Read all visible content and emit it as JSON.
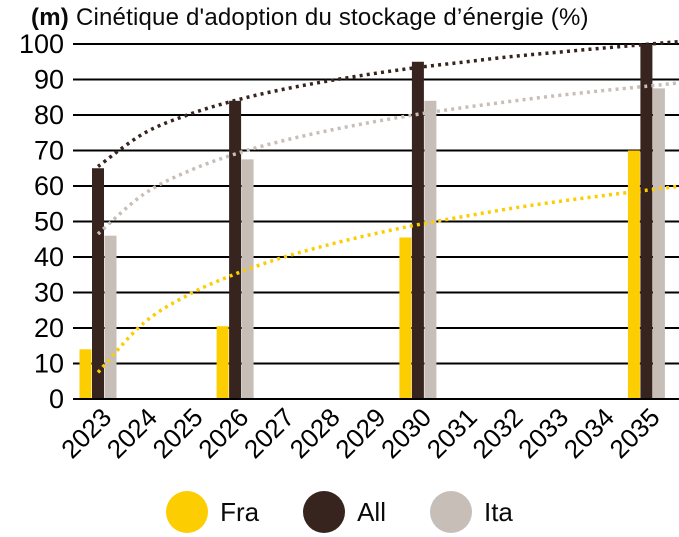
{
  "title": {
    "prefix": "(m)",
    "text": "Cinétique d'adoption du stockage d’énergie (%)"
  },
  "chart_data": {
    "type": "bar",
    "title": "Cinétique d'adoption du stockage d'énergie (%)",
    "xlabel": "",
    "ylabel": "",
    "ylim": [
      0,
      100
    ],
    "y_ticks": [
      0,
      10,
      20,
      30,
      40,
      50,
      60,
      70,
      80,
      90,
      100
    ],
    "grid": true,
    "legend_position": "bottom",
    "x_labels": [
      "2023",
      "2024",
      "2025",
      "2026",
      "2027",
      "2028",
      "2029",
      "2030",
      "2031",
      "2032",
      "2033",
      "2034",
      "2035"
    ],
    "bar_years": [
      "2023",
      "2026",
      "2030",
      "2035"
    ],
    "series": [
      {
        "name": "Fra",
        "color": "#FCCD00",
        "bars": [
          14,
          20.5,
          45.5,
          70
        ],
        "trend": [
          7.5,
          21.4,
          29.5,
          35.2,
          39.7,
          43.3,
          46.4,
          49.1,
          51.4,
          53.6,
          55.5,
          57.2,
          58.8
        ]
      },
      {
        "name": "All",
        "color": "#37241F",
        "bars": [
          65,
          84,
          95,
          100
        ],
        "trend": [
          65.5,
          74.8,
          80.2,
          84.1,
          87.1,
          89.5,
          91.6,
          93.4,
          94.9,
          96.4,
          97.6,
          98.8,
          99.9
        ]
      },
      {
        "name": "Ita",
        "color": "#C7BEB8",
        "bars": [
          46,
          67.5,
          84,
          87.5
        ],
        "trend": [
          46.5,
          57.7,
          64.3,
          69.0,
          72.6,
          75.5,
          78.0,
          80.2,
          82.1,
          83.8,
          85.4,
          86.8,
          88.1
        ]
      }
    ]
  },
  "legend": {
    "items": [
      {
        "label": "Fra",
        "color": "#FCCD00"
      },
      {
        "label": "All",
        "color": "#37241F"
      },
      {
        "label": "Ita",
        "color": "#C7BEB8"
      }
    ]
  }
}
